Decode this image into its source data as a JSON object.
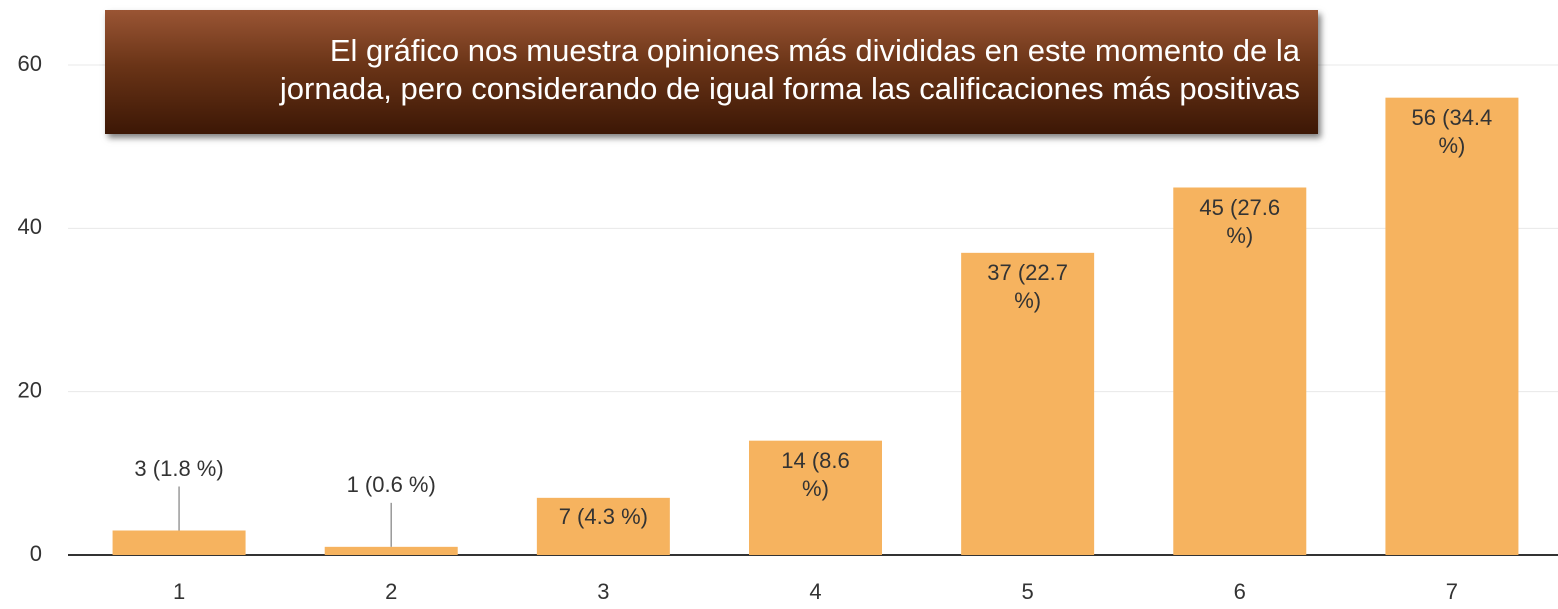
{
  "chart_data": {
    "type": "bar",
    "annotation": [
      "El gráfico nos muestra opiniones más divididas en este momento de la",
      "jornada, pero considerando de igual forma las calificaciones más positivas"
    ],
    "categories": [
      "1",
      "2",
      "3",
      "4",
      "5",
      "6",
      "7"
    ],
    "values": [
      3,
      1,
      7,
      14,
      37,
      45,
      56
    ],
    "value_labels": [
      "3 (1.8 %)",
      "1 (0.6 %)",
      "7 (4.3 %)",
      "14 (8.6 %)",
      "37 (22.7 %)",
      "45 (27.6 %)",
      "56 (34.4 %)"
    ],
    "color": "#f6b35f",
    "ylim": [
      0,
      60
    ],
    "yticks": [
      0,
      20,
      40,
      60
    ],
    "grid": true
  }
}
